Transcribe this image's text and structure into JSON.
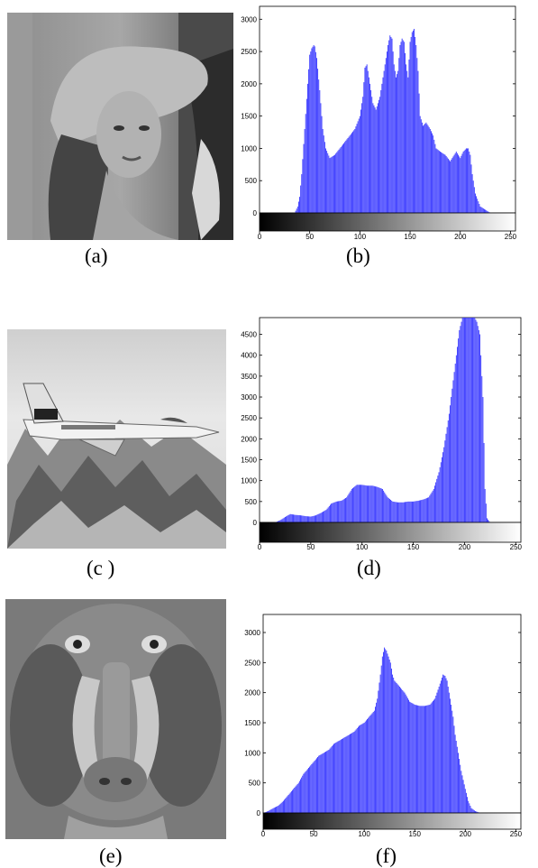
{
  "captions": [
    "(a)",
    "(b)",
    "(c )",
    "(d)",
    "(e)",
    "(f)"
  ],
  "images": [
    {
      "subject": "woman-with-hat-photo"
    },
    {
      "subject": "fighter-jet-over-mountains-photo"
    },
    {
      "subject": "mandrill-face-photo"
    }
  ],
  "colors": {
    "bar": "#3333ff",
    "axis": "#000000",
    "background": "#ffffff"
  },
  "chart_data": [
    {
      "type": "bar",
      "title": "",
      "xlabel": "",
      "ylabel": "",
      "xlim": [
        0,
        255
      ],
      "ylim": [
        0,
        3200
      ],
      "xticks": [
        0,
        50,
        100,
        150,
        200,
        250
      ],
      "yticks": [
        500,
        1000,
        1500,
        2000,
        2500,
        3000
      ],
      "grid": false,
      "x": [
        0,
        5,
        10,
        15,
        20,
        25,
        30,
        35,
        38,
        40,
        42,
        45,
        48,
        50,
        52,
        54,
        55,
        57,
        60,
        63,
        66,
        70,
        75,
        80,
        85,
        90,
        95,
        100,
        103,
        105,
        107,
        110,
        113,
        116,
        120,
        125,
        128,
        130,
        132,
        134,
        136,
        138,
        140,
        142,
        144,
        146,
        148,
        150,
        152,
        154,
        156,
        158,
        160,
        163,
        166,
        170,
        173,
        176,
        180,
        185,
        190,
        194,
        196,
        198,
        200,
        203,
        206,
        208,
        210,
        212,
        215,
        220,
        225,
        230,
        235,
        240,
        245,
        250,
        255
      ],
      "values": [
        0,
        0,
        0,
        0,
        0,
        0,
        0,
        0,
        100,
        250,
        600,
        1300,
        2000,
        2450,
        2550,
        2600,
        2580,
        2400,
        1900,
        1300,
        1000,
        850,
        900,
        1000,
        1100,
        1200,
        1300,
        1500,
        1800,
        2250,
        2300,
        2000,
        1700,
        1600,
        1800,
        2300,
        2600,
        2750,
        2700,
        2300,
        2100,
        2200,
        2600,
        2700,
        2650,
        2300,
        2100,
        2650,
        2800,
        2850,
        2600,
        2200,
        1500,
        1350,
        1400,
        1300,
        1200,
        1000,
        950,
        900,
        800,
        900,
        950,
        900,
        850,
        950,
        1000,
        1000,
        900,
        600,
        300,
        100,
        50,
        0,
        0,
        0,
        0,
        0,
        0
      ]
    },
    {
      "type": "bar",
      "title": "",
      "xlabel": "",
      "ylabel": "",
      "xlim": [
        0,
        255
      ],
      "ylim": [
        0,
        4900
      ],
      "xticks": [
        0,
        50,
        100,
        150,
        200,
        250
      ],
      "yticks": [
        500,
        1000,
        1500,
        2000,
        2500,
        3000,
        3500,
        4000,
        4500
      ],
      "grid": false,
      "x": [
        0,
        5,
        10,
        15,
        20,
        25,
        30,
        35,
        40,
        45,
        50,
        55,
        60,
        65,
        70,
        75,
        80,
        85,
        90,
        95,
        100,
        105,
        110,
        115,
        120,
        125,
        130,
        135,
        140,
        145,
        150,
        155,
        160,
        165,
        170,
        175,
        180,
        185,
        190,
        195,
        198,
        200,
        202,
        205,
        208,
        210,
        212,
        215,
        218,
        220,
        222,
        225,
        230,
        235,
        240,
        245,
        250,
        255
      ],
      "values": [
        0,
        0,
        0,
        0,
        50,
        130,
        200,
        180,
        170,
        150,
        140,
        170,
        230,
        300,
        450,
        500,
        520,
        600,
        800,
        900,
        900,
        880,
        880,
        850,
        800,
        600,
        500,
        480,
        480,
        500,
        500,
        520,
        550,
        600,
        800,
        1200,
        1800,
        2600,
        3600,
        4600,
        4900,
        4900,
        4900,
        4900,
        4900,
        4900,
        4800,
        4500,
        3000,
        800,
        100,
        0,
        0,
        0,
        0,
        0,
        0,
        0
      ]
    },
    {
      "type": "bar",
      "title": "",
      "xlabel": "",
      "ylabel": "",
      "xlim": [
        0,
        255
      ],
      "ylim": [
        0,
        3300
      ],
      "xticks": [
        0,
        50,
        100,
        150,
        200,
        250
      ],
      "yticks": [
        500,
        1000,
        1500,
        2000,
        2500,
        3000
      ],
      "grid": false,
      "x": [
        0,
        5,
        10,
        15,
        20,
        25,
        30,
        35,
        40,
        45,
        50,
        55,
        60,
        65,
        70,
        75,
        80,
        85,
        90,
        95,
        100,
        105,
        110,
        113,
        116,
        118,
        120,
        122,
        124,
        126,
        128,
        130,
        135,
        140,
        145,
        150,
        155,
        160,
        165,
        170,
        173,
        176,
        178,
        180,
        182,
        184,
        186,
        188,
        190,
        193,
        196,
        200,
        203,
        206,
        210,
        215,
        220,
        230,
        240,
        250,
        255
      ],
      "values": [
        0,
        30,
        80,
        120,
        200,
        300,
        400,
        500,
        650,
        750,
        850,
        950,
        1000,
        1050,
        1150,
        1200,
        1250,
        1300,
        1350,
        1450,
        1500,
        1600,
        1700,
        1900,
        2300,
        2600,
        2750,
        2700,
        2600,
        2500,
        2300,
        2200,
        2100,
        2000,
        1850,
        1800,
        1780,
        1780,
        1800,
        1900,
        2050,
        2200,
        2300,
        2280,
        2200,
        2000,
        1800,
        1600,
        1300,
        1000,
        700,
        400,
        200,
        80,
        30,
        0,
        0,
        0,
        0,
        0,
        0
      ]
    }
  ]
}
